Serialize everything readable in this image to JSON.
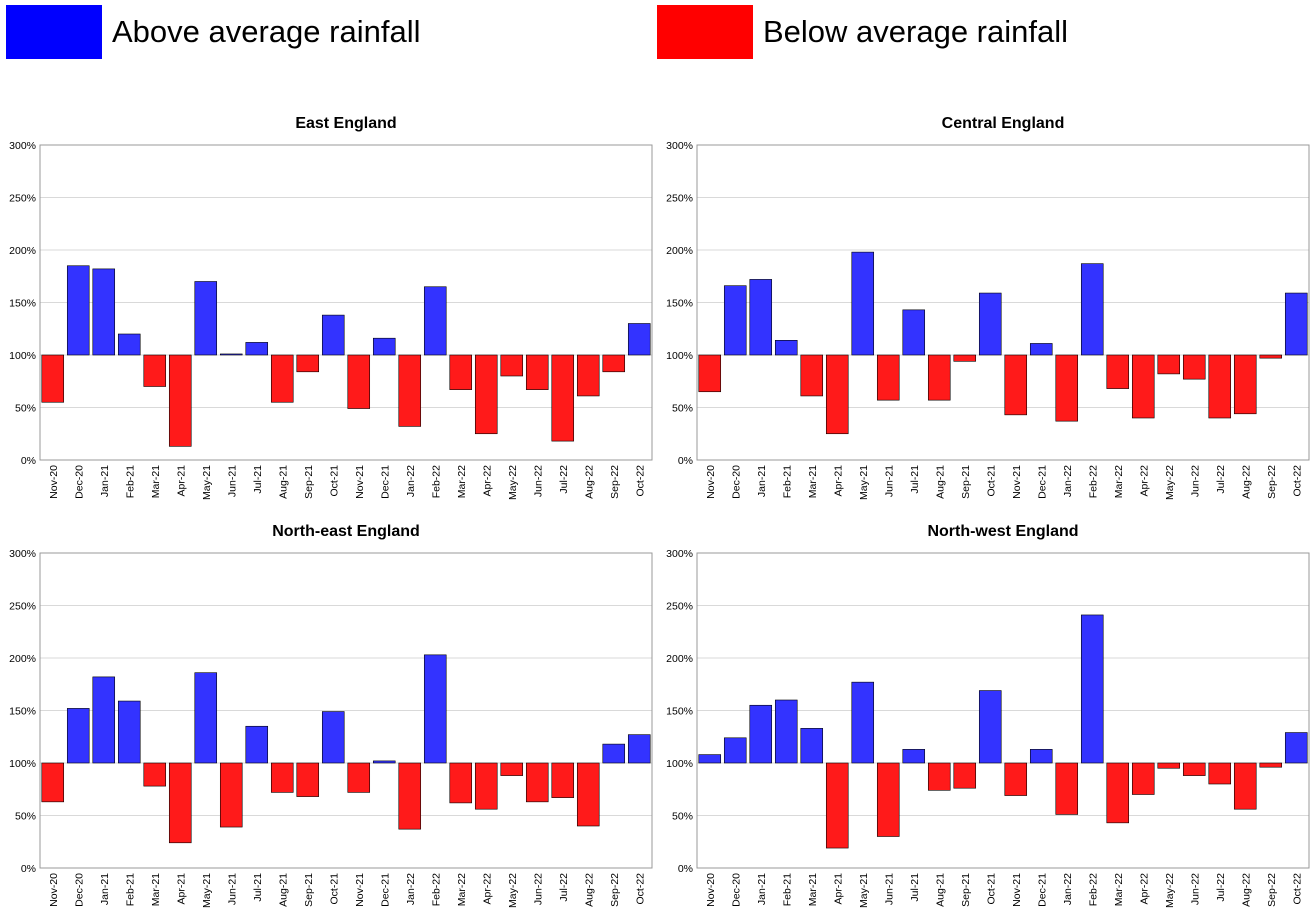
{
  "legend": {
    "above": {
      "label": "Above average rainfall",
      "color": "#0000FF"
    },
    "below": {
      "label": "Below average rainfall",
      "color": "#FF0000"
    }
  },
  "colors": {
    "above_bar": "#3333FF",
    "below_bar": "#FF1A1A",
    "grid": "#D9D9D9",
    "axis": "#999999"
  },
  "chart_data": [
    {
      "type": "bar",
      "title": "East England",
      "baseline": 100,
      "ylim": [
        0,
        300
      ],
      "yticks": [
        0,
        50,
        100,
        150,
        200,
        250,
        300
      ],
      "ytick_labels": [
        "0%",
        "50%",
        "100%",
        "150%",
        "200%",
        "250%",
        "300%"
      ],
      "grid": true,
      "categories": [
        "Nov-20",
        "Dec-20",
        "Jan-21",
        "Feb-21",
        "Mar-21",
        "Apr-21",
        "May-21",
        "Jun-21",
        "Jul-21",
        "Aug-21",
        "Sep-21",
        "Oct-21",
        "Nov-21",
        "Dec-21",
        "Jan-22",
        "Feb-22",
        "Mar-22",
        "Apr-22",
        "May-22",
        "Jun-22",
        "Jul-22",
        "Aug-22",
        "Sep-22",
        "Oct-22"
      ],
      "values": [
        55,
        185,
        182,
        120,
        70,
        13,
        170,
        101,
        112,
        55,
        84,
        138,
        49,
        116,
        32,
        165,
        67,
        25,
        80,
        67,
        18,
        61,
        84,
        130
      ]
    },
    {
      "type": "bar",
      "title": "Central England",
      "baseline": 100,
      "ylim": [
        0,
        300
      ],
      "yticks": [
        0,
        50,
        100,
        150,
        200,
        250,
        300
      ],
      "ytick_labels": [
        "0%",
        "50%",
        "100%",
        "150%",
        "200%",
        "250%",
        "300%"
      ],
      "grid": true,
      "categories": [
        "Nov-20",
        "Dec-20",
        "Jan-21",
        "Feb-21",
        "Mar-21",
        "Apr-21",
        "May-21",
        "Jun-21",
        "Jul-21",
        "Aug-21",
        "Sep-21",
        "Oct-21",
        "Nov-21",
        "Dec-21",
        "Jan-22",
        "Feb-22",
        "Mar-22",
        "Apr-22",
        "May-22",
        "Jun-22",
        "Jul-22",
        "Aug-22",
        "Sep-22",
        "Oct-22"
      ],
      "values": [
        65,
        166,
        172,
        114,
        61,
        25,
        198,
        57,
        143,
        57,
        94,
        159,
        43,
        111,
        37,
        187,
        68,
        40,
        82,
        77,
        40,
        44,
        97,
        159
      ]
    },
    {
      "type": "bar",
      "title": "North-east England",
      "baseline": 100,
      "ylim": [
        0,
        300
      ],
      "yticks": [
        0,
        50,
        100,
        150,
        200,
        250,
        300
      ],
      "ytick_labels": [
        "0%",
        "50%",
        "100%",
        "150%",
        "200%",
        "250%",
        "300%"
      ],
      "grid": true,
      "categories": [
        "Nov-20",
        "Dec-20",
        "Jan-21",
        "Feb-21",
        "Mar-21",
        "Apr-21",
        "May-21",
        "Jun-21",
        "Jul-21",
        "Aug-21",
        "Sep-21",
        "Oct-21",
        "Nov-21",
        "Dec-21",
        "Jan-22",
        "Feb-22",
        "Mar-22",
        "Apr-22",
        "May-22",
        "Jun-22",
        "Jul-22",
        "Aug-22",
        "Sep-22",
        "Oct-22"
      ],
      "values": [
        63,
        152,
        182,
        159,
        78,
        24,
        186,
        39,
        135,
        72,
        68,
        149,
        72,
        102,
        37,
        203,
        62,
        56,
        88,
        63,
        67,
        40,
        118,
        127
      ]
    },
    {
      "type": "bar",
      "title": "North-west England",
      "baseline": 100,
      "ylim": [
        0,
        300
      ],
      "yticks": [
        0,
        50,
        100,
        150,
        200,
        250,
        300
      ],
      "ytick_labels": [
        "0%",
        "50%",
        "100%",
        "150%",
        "200%",
        "250%",
        "300%"
      ],
      "grid": true,
      "categories": [
        "Nov-20",
        "Dec-20",
        "Jan-21",
        "Feb-21",
        "Mar-21",
        "Apr-21",
        "May-21",
        "Jun-21",
        "Jul-21",
        "Aug-21",
        "Sep-21",
        "Oct-21",
        "Nov-21",
        "Dec-21",
        "Jan-22",
        "Feb-22",
        "Mar-22",
        "Apr-22",
        "May-22",
        "Jun-22",
        "Jul-22",
        "Aug-22",
        "Sep-22",
        "Oct-22"
      ],
      "values": [
        108,
        124,
        155,
        160,
        133,
        19,
        177,
        30,
        113,
        74,
        76,
        169,
        69,
        113,
        51,
        241,
        43,
        70,
        95,
        88,
        80,
        56,
        96,
        129
      ]
    }
  ]
}
